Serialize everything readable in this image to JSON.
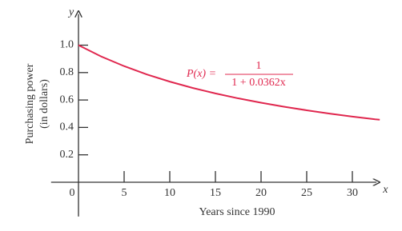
{
  "chart_data": {
    "type": "line",
    "x": [
      0,
      2.5,
      5,
      7.5,
      10,
      12.5,
      15,
      17.5,
      20,
      22.5,
      25,
      27.5,
      30,
      32.5,
      33
    ],
    "values": [
      1,
      0.917,
      0.847,
      0.786,
      0.734,
      0.688,
      0.648,
      0.612,
      0.58,
      0.551,
      0.525,
      0.501,
      0.479,
      0.459,
      0.456
    ],
    "color": "#e0284f",
    "xlim": [
      -3,
      33
    ],
    "ylim": [
      -0.25,
      1.25
    ],
    "xticks": [
      0,
      5,
      10,
      15,
      20,
      25,
      30
    ],
    "yticks": [
      0.2,
      0.4,
      0.6,
      0.8,
      {
        "value": 1,
        "label": "1.0"
      }
    ],
    "x_axis_name": "x",
    "y_axis_name": "y",
    "xlabel": "Years since 1990",
    "ylabel": [
      "Purchasing power",
      "(in dollars)"
    ],
    "annotation": {
      "lhs": "P(x) =",
      "numerator": "1",
      "denominator": "1 + 0.0362x"
    }
  }
}
